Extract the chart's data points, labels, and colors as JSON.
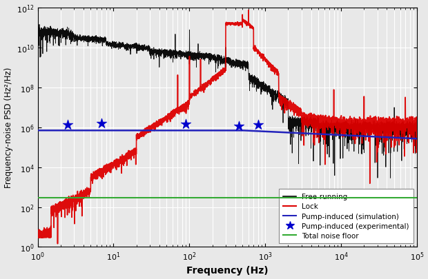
{
  "xlim": [
    1,
    100000.0
  ],
  "ylim": [
    1.0,
    1000000000000.0
  ],
  "xlabel": "Frequency (Hz)",
  "ylabel": "Frequency-noise PSD (Hz²/Hz)",
  "background_color": "#e8e8e8",
  "grid_color": "#ffffff",
  "free_running_color": "#000000",
  "lock_color": "#dd0000",
  "pump_sim_color": "#2222bb",
  "pump_exp_color": "#0000cc",
  "noise_floor_color": "#33aa33",
  "pump_exp_points_x": [
    2.5,
    7,
    90,
    450,
    800
  ],
  "pump_exp_points_y": [
    1300000.0,
    1600000.0,
    1500000.0,
    1200000.0,
    1400000.0
  ],
  "noise_floor_level": 300,
  "figsize": [
    6.2,
    4.06
  ],
  "dpi": 100
}
